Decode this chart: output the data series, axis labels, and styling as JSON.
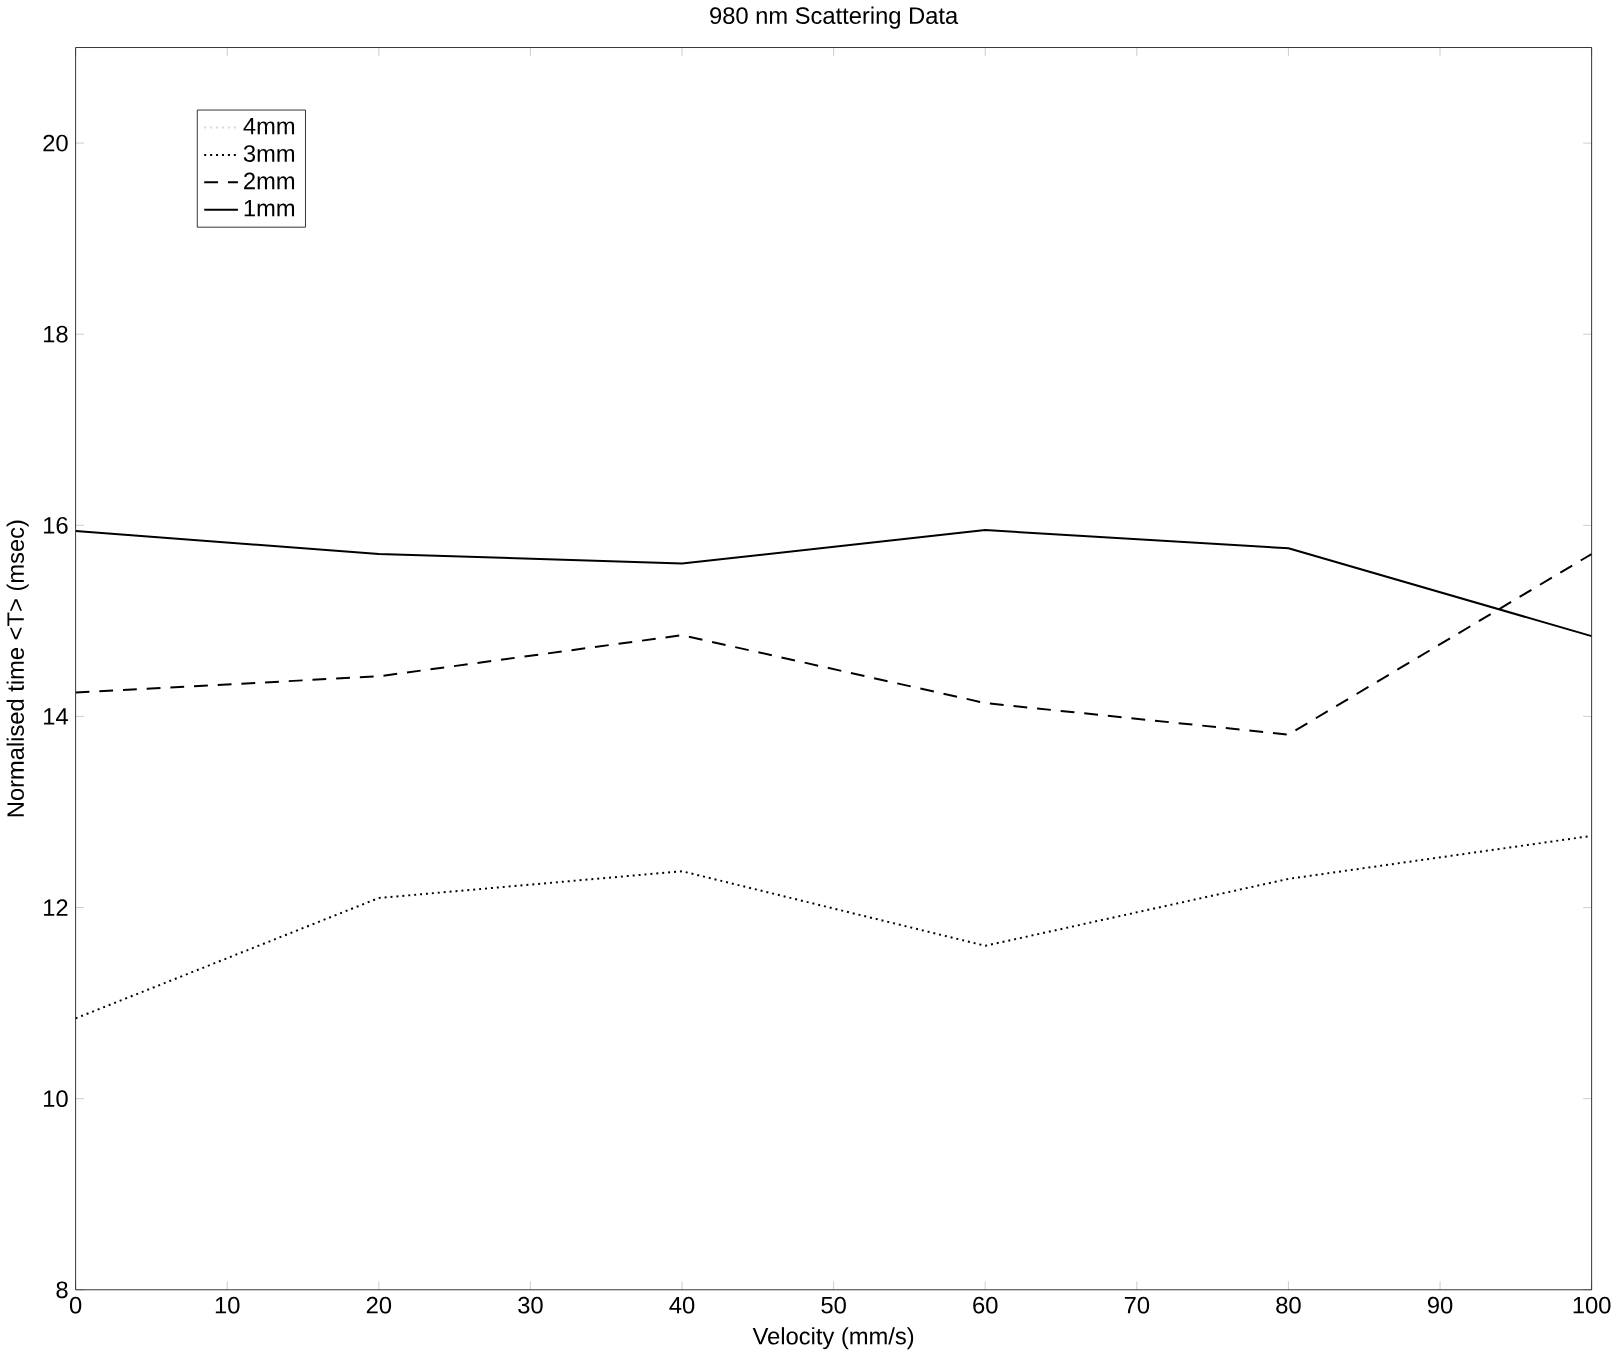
{
  "chart_data": {
    "type": "line",
    "title": "980 nm Scattering Data",
    "xlabel": "Velocity (mm/s)",
    "ylabel": "Normalised time <T> (msec)",
    "x": [
      0,
      20,
      40,
      60,
      80,
      100
    ],
    "series": [
      {
        "name": "4mm",
        "color": "#d8d8d8",
        "line_style": "dotted",
        "values": [
          null,
          null,
          null,
          null,
          null,
          null
        ]
      },
      {
        "name": "3mm",
        "color": "#000000",
        "line_style": "dotted",
        "values": [
          10.84,
          12.1,
          12.38,
          11.6,
          12.3,
          12.75
        ]
      },
      {
        "name": "2mm",
        "color": "#000000",
        "line_style": "dashed",
        "values": [
          14.25,
          14.42,
          14.85,
          14.14,
          13.81,
          15.7
        ]
      },
      {
        "name": "1mm",
        "color": "#000000",
        "line_style": "solid",
        "values": [
          15.94,
          15.7,
          15.6,
          15.95,
          15.76,
          14.84
        ]
      }
    ],
    "xlim": [
      0,
      100
    ],
    "ylim": [
      8,
      21
    ],
    "xticks": [
      0,
      10,
      20,
      30,
      40,
      50,
      60,
      70,
      80,
      90,
      100
    ],
    "yticks": [
      8,
      10,
      12,
      14,
      16,
      18,
      20
    ],
    "grid": false,
    "legend": "top left",
    "marker": "none"
  }
}
